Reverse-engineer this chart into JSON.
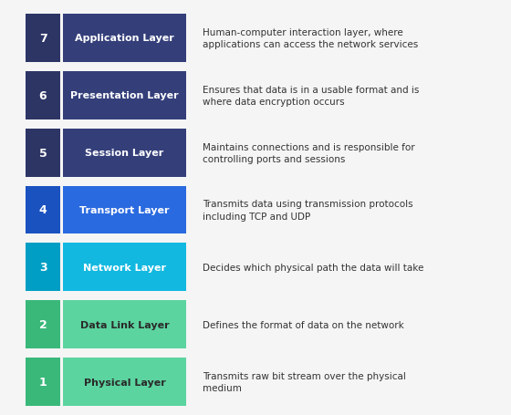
{
  "layers": [
    {
      "number": "7",
      "name": "Application Layer",
      "description": "Human-computer interaction layer, where\napplications can access the network services",
      "num_color": "#2d3565",
      "bar_color": "#343f7a",
      "text_color": "#ffffff",
      "desc_color": "#333333"
    },
    {
      "number": "6",
      "name": "Presentation Layer",
      "description": "Ensures that data is in a usable format and is\nwhere data encryption occurs",
      "num_color": "#2d3565",
      "bar_color": "#343f7a",
      "text_color": "#ffffff",
      "desc_color": "#333333"
    },
    {
      "number": "5",
      "name": "Session Layer",
      "description": "Maintains connections and is responsible for\ncontrolling ports and sessions",
      "num_color": "#2d3565",
      "bar_color": "#343f7a",
      "text_color": "#ffffff",
      "desc_color": "#333333"
    },
    {
      "number": "4",
      "name": "Transport Layer",
      "description": "Transmits data using transmission protocols\nincluding TCP and UDP",
      "num_color": "#1a52c0",
      "bar_color": "#2a6ae0",
      "text_color": "#ffffff",
      "desc_color": "#333333"
    },
    {
      "number": "3",
      "name": "Network Layer",
      "description": "Decides which physical path the data will take",
      "num_color": "#009ec4",
      "bar_color": "#12b8e0",
      "text_color": "#ffffff",
      "desc_color": "#333333"
    },
    {
      "number": "2",
      "name": "Data Link Layer",
      "description": "Defines the format of data on the network",
      "num_color": "#3ab87a",
      "bar_color": "#5cd4a0",
      "text_color": "#2a2a2a",
      "desc_color": "#333333"
    },
    {
      "number": "1",
      "name": "Physical Layer",
      "description": "Transmits raw bit stream over the physical\nmedium",
      "num_color": "#3ab87a",
      "bar_color": "#5cd4a0",
      "text_color": "#2a2a2a",
      "desc_color": "#333333"
    }
  ],
  "background_color": "#f5f5f5",
  "fig_width": 5.6,
  "fig_height": 4.56,
  "dpi": 100
}
